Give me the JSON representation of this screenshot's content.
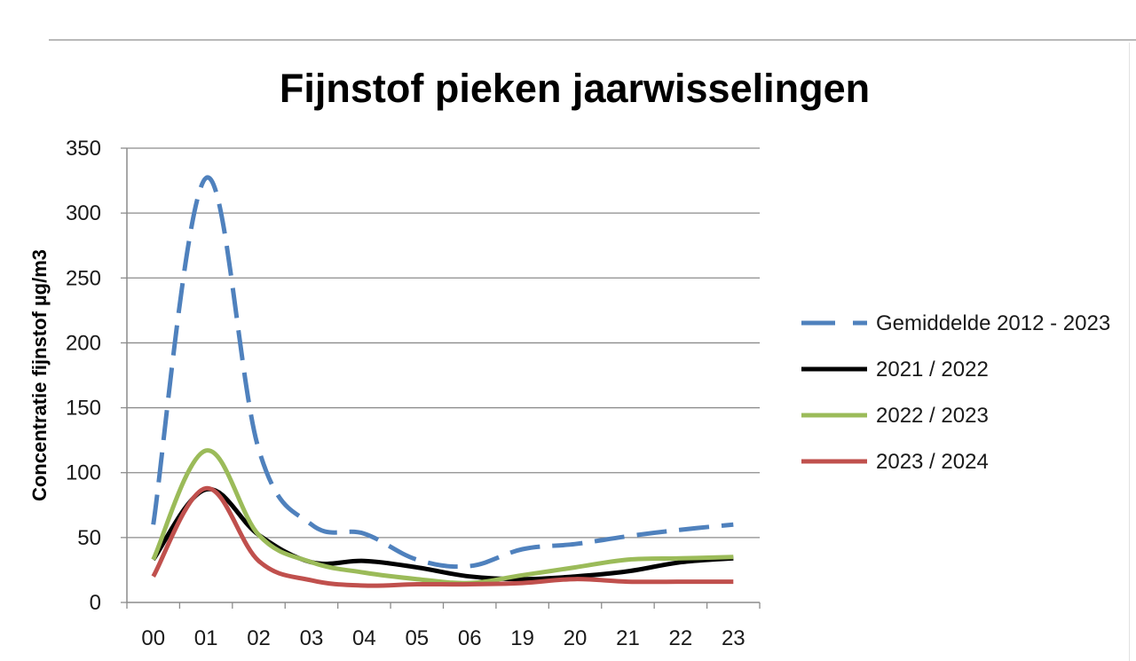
{
  "chart_data": {
    "type": "line",
    "title": "Fijnstof pieken jaarwisselingen",
    "xlabel": "",
    "ylabel": "Concentratie fijnstof µg/m3",
    "categories": [
      "00",
      "01",
      "02",
      "03",
      "04",
      "05",
      "06",
      "19",
      "20",
      "21",
      "22",
      "23"
    ],
    "ylim": [
      0,
      350
    ],
    "yticks": [
      0,
      50,
      100,
      150,
      200,
      250,
      300,
      350
    ],
    "grid": true,
    "legend_position": "right",
    "series": [
      {
        "name": "Gemiddelde 2012 - 2023",
        "color": "#4f81bd",
        "dashed": true,
        "values": [
          60,
          327,
          118,
          60,
          53,
          33,
          28,
          41,
          45,
          51,
          56,
          60
        ]
      },
      {
        "name": "2021 / 2022",
        "color": "#000000",
        "dashed": false,
        "values": [
          33,
          87,
          52,
          31,
          32,
          27,
          20,
          18,
          20,
          24,
          31,
          34
        ]
      },
      {
        "name": "2022 / 2023",
        "color": "#9bbb59",
        "dashed": false,
        "values": [
          33,
          117,
          52,
          31,
          23,
          18,
          15,
          21,
          27,
          33,
          34,
          35
        ]
      },
      {
        "name": "2023 / 2024",
        "color": "#c0504d",
        "dashed": false,
        "values": [
          20,
          88,
          32,
          17,
          13,
          14,
          14,
          15,
          18,
          16,
          16,
          16
        ]
      }
    ]
  }
}
